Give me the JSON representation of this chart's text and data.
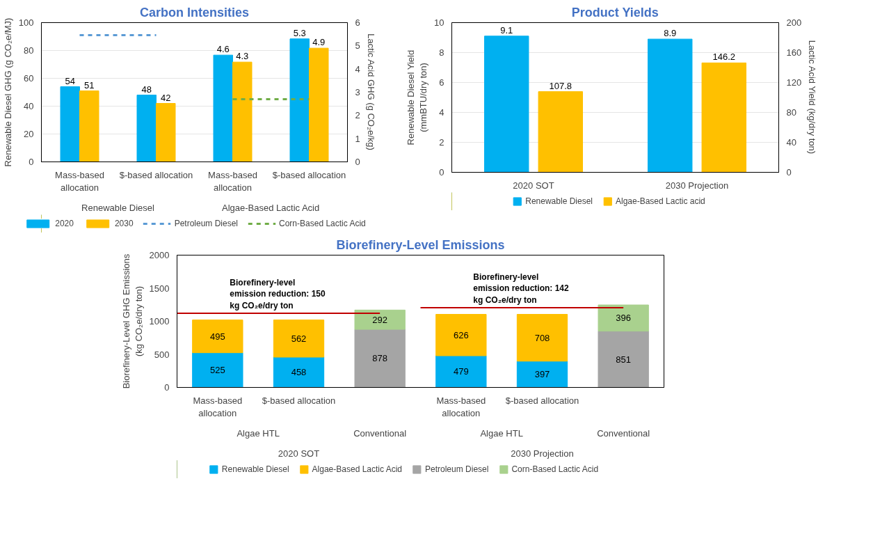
{
  "chart_data": [
    {
      "type": "bar",
      "title": "Carbon Intensities",
      "ylabel": "Renewable Diesel GHG (g CO₂e/MJ)",
      "y2label": "Lactic Acid GHG (g CO₂e/kg)",
      "categories": [
        "Mass-based allocation",
        "$-based allocation",
        "Mass-based allocation",
        "$-based allocation"
      ],
      "series": [
        {
          "name": "2020",
          "color": "#00b0f0",
          "values": [
            54,
            48,
            null,
            null
          ]
        },
        {
          "name": "2030",
          "color": "#ffc000",
          "values": [
            51,
            42,
            null,
            null
          ]
        },
        {
          "color": "#00b0f0",
          "axis": "y2",
          "values": [
            null,
            null,
            4.6,
            5.3
          ]
        },
        {
          "color": "#ffc000",
          "axis": "y2",
          "values": [
            null,
            null,
            4.3,
            4.9
          ]
        },
        {
          "name": "Petroleum Diesel",
          "type": "line",
          "line_style": "dashed",
          "color": "#5b9bd5",
          "values": [
            91,
            91,
            null,
            null
          ],
          "value_labels": [
            null,
            null,
            null,
            null
          ]
        },
        {
          "name": "Corn-Based Lactic Acid",
          "type": "line",
          "line_style": "dashed",
          "axis": "y2",
          "color": "#70ad47",
          "values": [
            null,
            null,
            2.7,
            2.7
          ],
          "value_labels": [
            null,
            null,
            null,
            null
          ]
        }
      ],
      "annotations": [
        "Renewable Diesel",
        "Algae-Based Lactic Acid"
      ],
      "ylim": [
        0,
        100
      ],
      "yticks": [
        0,
        20,
        40,
        60,
        80,
        100
      ],
      "y2lim": [
        0,
        6
      ],
      "y2ticks": [
        0,
        1,
        2,
        3,
        4,
        5,
        6
      ],
      "data_labels": true,
      "grid": "y",
      "legend": "bottom"
    },
    {
      "type": "bar",
      "title": "Product Yields",
      "ylabel": "Renewable Diesel Yield (mmBTU/dry ton)",
      "y2label": "Lactic Acid Yield (kg/dry ton)",
      "categories": [
        "2020 SOT",
        "2030 Projection"
      ],
      "series": [
        {
          "name": "Renewable Diesel",
          "color": "#00b0f0",
          "values": [
            9.1,
            8.9
          ]
        },
        {
          "name": "Algae-Based Lactic acid",
          "color": "#ffc000",
          "axis": "y2",
          "values": [
            107.8,
            146.2
          ]
        }
      ],
      "ylim": [
        0,
        10
      ],
      "yticks": [
        0,
        2,
        4,
        6,
        8,
        10
      ],
      "y2lim": [
        0,
        200
      ],
      "y2ticks": [
        0,
        40,
        80,
        120,
        160,
        200
      ],
      "data_labels": true,
      "grid": "y",
      "legend": "bottom"
    },
    {
      "type": "bar",
      "title": "Biorefinery-Level Emissions",
      "ylabel": "Biorefinery-Level GHG Emissions (kg CO₂e/dry ton)",
      "categories": [
        "Mass-based allocation",
        "$-based allocation",
        null,
        "Mass-based allocation",
        "$-based allocation",
        null
      ],
      "stacked": true,
      "series": [
        {
          "name": "Renewable Diesel",
          "color": "#00b0f0",
          "values": [
            525,
            458,
            null,
            479,
            397,
            null
          ]
        },
        {
          "name": "Algae-Based Lactic Acid",
          "color": "#ffc000",
          "values": [
            495,
            562,
            null,
            626,
            708,
            null
          ]
        },
        {
          "name": "Petroleum Diesel",
          "color": "#a5a5a5",
          "values": [
            null,
            null,
            878,
            null,
            null,
            851
          ]
        },
        {
          "name": "Corn-Based Lactic Acid",
          "color": "#a9d18e",
          "values": [
            null,
            null,
            292,
            null,
            null,
            396
          ]
        }
      ],
      "annotations": [
        "Algae HTL",
        "Conventional",
        "Algae HTL",
        "Conventional",
        "2020 SOT",
        "2030 Projection",
        "Biorefinery-level emission reduction: 150 kg CO₂e/dry ton",
        "Biorefinery-level emission reduction: 142 kg CO₂e/dry ton"
      ],
      "ylim": [
        0,
        2000
      ],
      "yticks": [
        0,
        500,
        1000,
        1500,
        2000
      ],
      "data_labels": true,
      "legend": "bottom"
    }
  ]
}
